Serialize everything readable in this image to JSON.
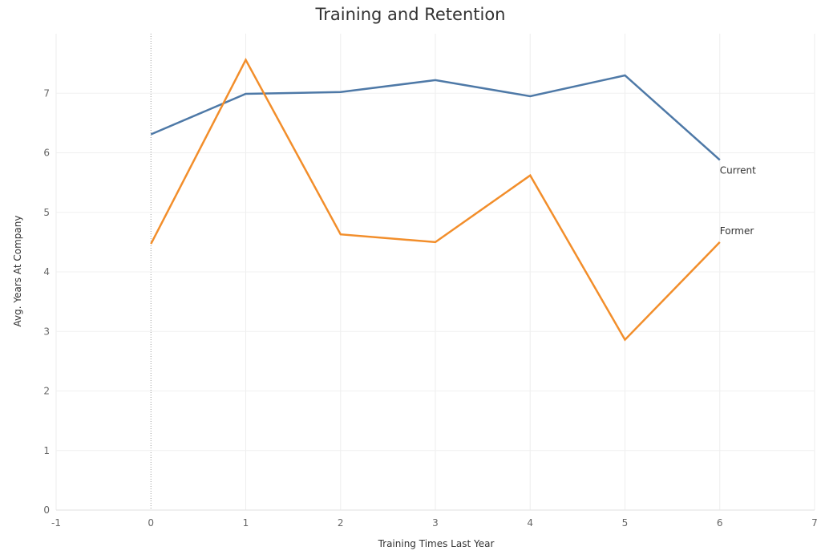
{
  "chart_data": {
    "type": "line",
    "title": "Training and Retention",
    "xlabel": "Training Times Last Year",
    "ylabel": "Avg. Years At Company",
    "xlim": [
      -1,
      7
    ],
    "ylim": [
      0,
      8
    ],
    "x_ticks": [
      "-1",
      "0",
      "1",
      "2",
      "3",
      "4",
      "5",
      "6",
      "7"
    ],
    "y_ticks": [
      "0",
      "1",
      "2",
      "3",
      "4",
      "5",
      "6",
      "7"
    ],
    "grid": true,
    "x": [
      0,
      1,
      2,
      3,
      4,
      5,
      6
    ],
    "series": [
      {
        "name": "Current",
        "color": "#4e79a7",
        "values": [
          6.31,
          6.99,
          7.02,
          7.22,
          6.95,
          7.3,
          5.88
        ]
      },
      {
        "name": "Former",
        "color": "#f28e2b",
        "values": [
          4.47,
          7.56,
          4.63,
          4.5,
          5.62,
          2.86,
          4.5
        ]
      }
    ]
  }
}
